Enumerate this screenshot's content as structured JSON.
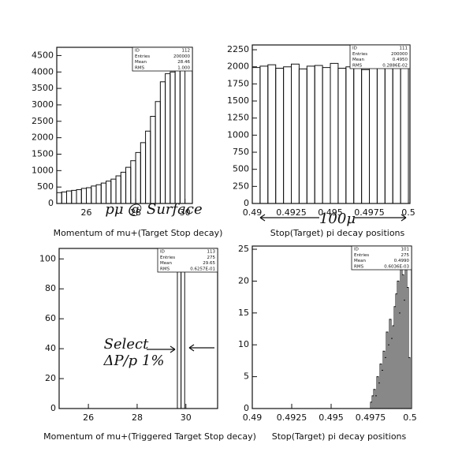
{
  "chart_data": [
    {
      "type": "histogram",
      "xlabel": "Momentum of mu+(Target Stop decay)",
      "bins": [
        24.8,
        25.0,
        25.2,
        25.4,
        25.6,
        25.8,
        26.0,
        26.2,
        26.4,
        26.6,
        26.8,
        27.0,
        27.2,
        27.4,
        27.6,
        27.8,
        28.0,
        28.2,
        28.4,
        28.6,
        28.8,
        29.0,
        29.2,
        29.4,
        29.6,
        29.8,
        30.0
      ],
      "values": [
        330,
        350,
        380,
        400,
        420,
        460,
        480,
        530,
        570,
        620,
        680,
        740,
        840,
        950,
        1100,
        1300,
        1550,
        1850,
        2200,
        2650,
        3100,
        3700,
        3950,
        4000,
        4150,
        4300
      ],
      "xlim": [
        24.8,
        30.3
      ],
      "ylim": [
        0,
        4750
      ],
      "xticks": [
        26,
        28,
        30
      ],
      "yticks": [
        0,
        500,
        1000,
        1500,
        2000,
        2500,
        3000,
        3500,
        4000,
        4500
      ],
      "stats": [
        {
          "label": "ID",
          "value": "112"
        },
        {
          "label": "Entries",
          "value": "200000"
        },
        {
          "label": "Mean",
          "value": "28.46"
        },
        {
          "label": "RMS",
          "value": "1.000"
        }
      ],
      "annotations": [
        "pμ @ Surface"
      ]
    },
    {
      "type": "histogram",
      "xlabel": "Stop(Target) pi decay positions",
      "bins": [
        0.49,
        0.4905,
        0.491,
        0.4915,
        0.492,
        0.4925,
        0.493,
        0.4935,
        0.494,
        0.4945,
        0.495,
        0.4955,
        0.496,
        0.4965,
        0.497,
        0.4975,
        0.498,
        0.4985,
        0.499,
        0.4995,
        0.5
      ],
      "values": [
        1990,
        2010,
        2030,
        1980,
        2000,
        2040,
        1970,
        2010,
        2020,
        1990,
        2050,
        1980,
        2000,
        2030,
        1960,
        2010,
        2040,
        1990,
        2020,
        2300
      ],
      "xlim": [
        0.49,
        0.5001
      ],
      "ylim": [
        0,
        2320
      ],
      "xticks": [
        0.49,
        0.4925,
        0.495,
        0.4975,
        0.5
      ],
      "yticks": [
        0,
        250,
        500,
        750,
        1000,
        1250,
        1500,
        1750,
        2000,
        2250
      ],
      "stats": [
        {
          "label": "ID",
          "value": "111"
        },
        {
          "label": "Entries",
          "value": "200000"
        },
        {
          "label": "Mean",
          "value": "0.4950"
        },
        {
          "label": "RMS",
          "value": "0.2886E-02"
        }
      ],
      "annotations": [
        "100μ"
      ]
    },
    {
      "type": "histogram",
      "xlabel": "Momentum of mu+(Triggered Target Stop decay)",
      "bins": [
        29.65,
        29.8,
        29.95
      ],
      "values": [
        92,
        97
      ],
      "xlim": [
        24.8,
        31.3
      ],
      "ylim": [
        0,
        107
      ],
      "xticks": [
        26,
        28,
        30
      ],
      "yticks": [
        0,
        20,
        40,
        60,
        80,
        100
      ],
      "stats": [
        {
          "label": "ID",
          "value": "113"
        },
        {
          "label": "Entries",
          "value": "275"
        },
        {
          "label": "Mean",
          "value": "29.65"
        },
        {
          "label": "RMS",
          "value": "0.6257E-01"
        }
      ],
      "annotations": [
        "Select",
        "ΔP/p 1%"
      ]
    },
    {
      "type": "histogram",
      "xlabel": "Stop(Target) pi decay positions",
      "bins": [
        0.4975,
        0.4976,
        0.4977,
        0.4978,
        0.4979,
        0.498,
        0.4981,
        0.4982,
        0.4983,
        0.4984,
        0.4985,
        0.4986,
        0.4987,
        0.4988,
        0.4989,
        0.499,
        0.4991,
        0.4992,
        0.4993,
        0.4994,
        0.4995,
        0.4996,
        0.4997,
        0.4998,
        0.4999,
        0.5
      ],
      "values": [
        1,
        2,
        3,
        2,
        5,
        4,
        7,
        6,
        9,
        8,
        12,
        10,
        14,
        11,
        13,
        16,
        18,
        20,
        15,
        22,
        21,
        17,
        23,
        19,
        8
      ],
      "xlim": [
        0.49,
        0.5001
      ],
      "ylim": [
        0,
        25.5
      ],
      "xticks": [
        0.49,
        0.4925,
        0.495,
        0.4975,
        0.5
      ],
      "yticks": [
        0,
        5,
        10,
        15,
        20,
        25
      ],
      "stats": [
        {
          "label": "ID",
          "value": "101"
        },
        {
          "label": "Entries",
          "value": "275"
        },
        {
          "label": "Mean",
          "value": "0.4990"
        },
        {
          "label": "RMS",
          "value": "0.6036E-03"
        }
      ],
      "annotations": []
    }
  ]
}
